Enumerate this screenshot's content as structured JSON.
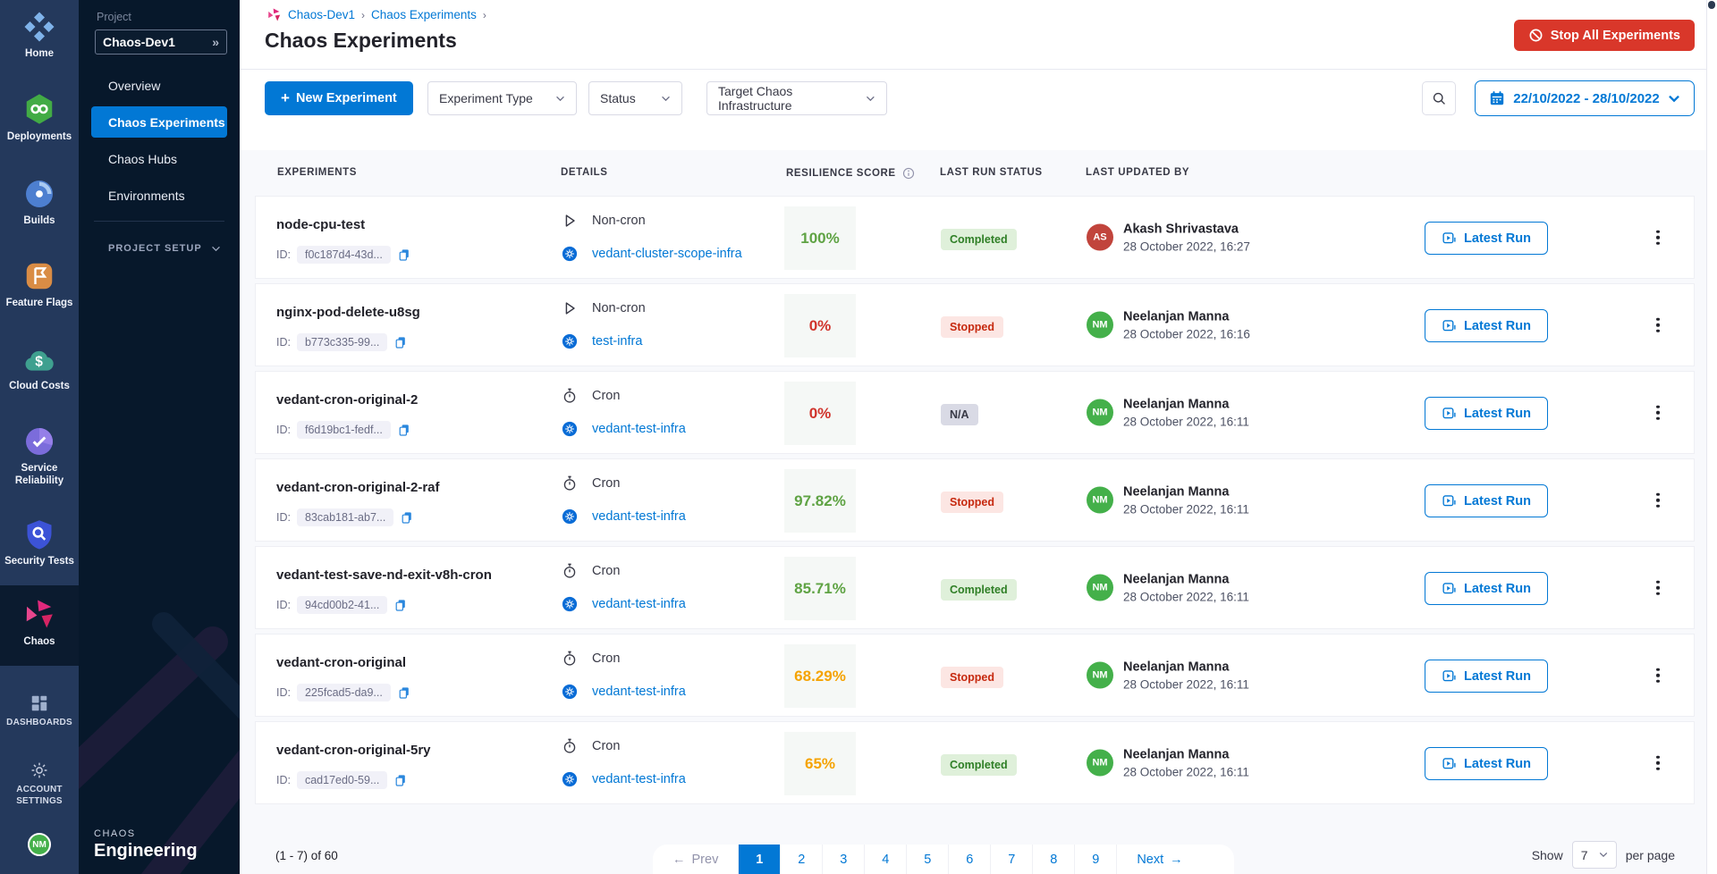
{
  "colors": {
    "accent": "#0278D5",
    "danger": "#D9372A",
    "sidebar_dark": "#07182B",
    "rail_blue": "#24395C",
    "score": {
      "green": "#5FA344",
      "red": "#D0342C",
      "orange": "#F5A302"
    }
  },
  "nav": {
    "modules": [
      {
        "label": "Home"
      },
      {
        "label": "Deployments"
      },
      {
        "label": "Builds"
      },
      {
        "label": "Feature Flags"
      },
      {
        "label": "Cloud Costs"
      },
      {
        "label": "Service Reliability"
      },
      {
        "label": "Security Tests"
      },
      {
        "label": "Chaos",
        "active": true
      }
    ],
    "dashboards": "DASHBOARDS",
    "account_settings": "ACCOUNT SETTINGS",
    "user_initials": "NM"
  },
  "project_sidebar": {
    "project_label": "Project",
    "project_name": "Chaos-Dev1",
    "items": [
      {
        "label": "Overview"
      },
      {
        "label": "Chaos Experiments",
        "active": true
      },
      {
        "label": "Chaos Hubs"
      },
      {
        "label": "Environments"
      }
    ],
    "project_setup": "PROJECT SETUP",
    "brand_top": "CHAOS",
    "brand_bottom": "Engineering"
  },
  "header": {
    "breadcrumbs": [
      "Chaos-Dev1",
      "Chaos Experiments"
    ],
    "title": "Chaos Experiments",
    "stop_all_label": "Stop All Experiments"
  },
  "toolbar": {
    "new_experiment_label": "New Experiment",
    "filters": [
      "Experiment Type",
      "Status",
      "Target Chaos Infrastructure"
    ],
    "date_range": "22/10/2022 - 28/10/2022"
  },
  "table": {
    "columns": [
      "EXPERIMENTS",
      "DETAILS",
      "RESILIENCE SCORE",
      "LAST RUN STATUS",
      "LAST UPDATED BY"
    ],
    "id_label": "ID:",
    "latest_run_label": "Latest Run",
    "rows": [
      {
        "name": "node-cpu-test",
        "id": "f0c187d4-43d...",
        "type": "Non-cron",
        "infra": "vedant-cluster-scope-infra",
        "score": "100%",
        "score_color": "green",
        "status": "Completed",
        "status_kind": "completed",
        "user": "Akash Shrivastava",
        "initials": "AS",
        "avatar_color": "#C1443C",
        "date": "28 October 2022, 16:27"
      },
      {
        "name": "nginx-pod-delete-u8sg",
        "id": "b773c335-99...",
        "type": "Non-cron",
        "infra": "test-infra",
        "score": "0%",
        "score_color": "red",
        "status": "Stopped",
        "status_kind": "stopped",
        "user": "Neelanjan Manna",
        "initials": "NM",
        "avatar_color": "#44B04A",
        "date": "28 October 2022, 16:16"
      },
      {
        "name": "vedant-cron-original-2",
        "id": "f6d19bc1-fedf...",
        "type": "Cron",
        "infra": "vedant-test-infra",
        "score": "0%",
        "score_color": "red",
        "status": "N/A",
        "status_kind": "na",
        "user": "Neelanjan Manna",
        "initials": "NM",
        "avatar_color": "#44B04A",
        "date": "28 October 2022, 16:11"
      },
      {
        "name": "vedant-cron-original-2-raf",
        "id": "83cab181-ab7...",
        "type": "Cron",
        "infra": "vedant-test-infra",
        "score": "97.82%",
        "score_color": "green",
        "status": "Stopped",
        "status_kind": "stopped",
        "user": "Neelanjan Manna",
        "initials": "NM",
        "avatar_color": "#44B04A",
        "date": "28 October 2022, 16:11"
      },
      {
        "name": "vedant-test-save-nd-exit-v8h-cron",
        "id": "94cd00b2-41...",
        "type": "Cron",
        "infra": "vedant-test-infra",
        "score": "85.71%",
        "score_color": "green",
        "status": "Completed",
        "status_kind": "completed",
        "user": "Neelanjan Manna",
        "initials": "NM",
        "avatar_color": "#44B04A",
        "date": "28 October 2022, 16:11"
      },
      {
        "name": "vedant-cron-original",
        "id": "225fcad5-da9...",
        "type": "Cron",
        "infra": "vedant-test-infra",
        "score": "68.29%",
        "score_color": "orange",
        "status": "Stopped",
        "status_kind": "stopped",
        "user": "Neelanjan Manna",
        "initials": "NM",
        "avatar_color": "#44B04A",
        "date": "28 October 2022, 16:11"
      },
      {
        "name": "vedant-cron-original-5ry",
        "id": "cad17ed0-59...",
        "type": "Cron",
        "infra": "vedant-test-infra",
        "score": "65%",
        "score_color": "orange",
        "status": "Completed",
        "status_kind": "completed",
        "user": "Neelanjan Manna",
        "initials": "NM",
        "avatar_color": "#44B04A",
        "date": "28 October 2022, 16:11"
      }
    ]
  },
  "pagination": {
    "range": "(1 - 7) of 60",
    "prev": "Prev",
    "next": "Next",
    "pages": [
      "1",
      "2",
      "3",
      "4",
      "5",
      "6",
      "7",
      "8",
      "9"
    ],
    "active_page": "1",
    "show": "Show",
    "page_size": "7",
    "per_page": "per page"
  }
}
